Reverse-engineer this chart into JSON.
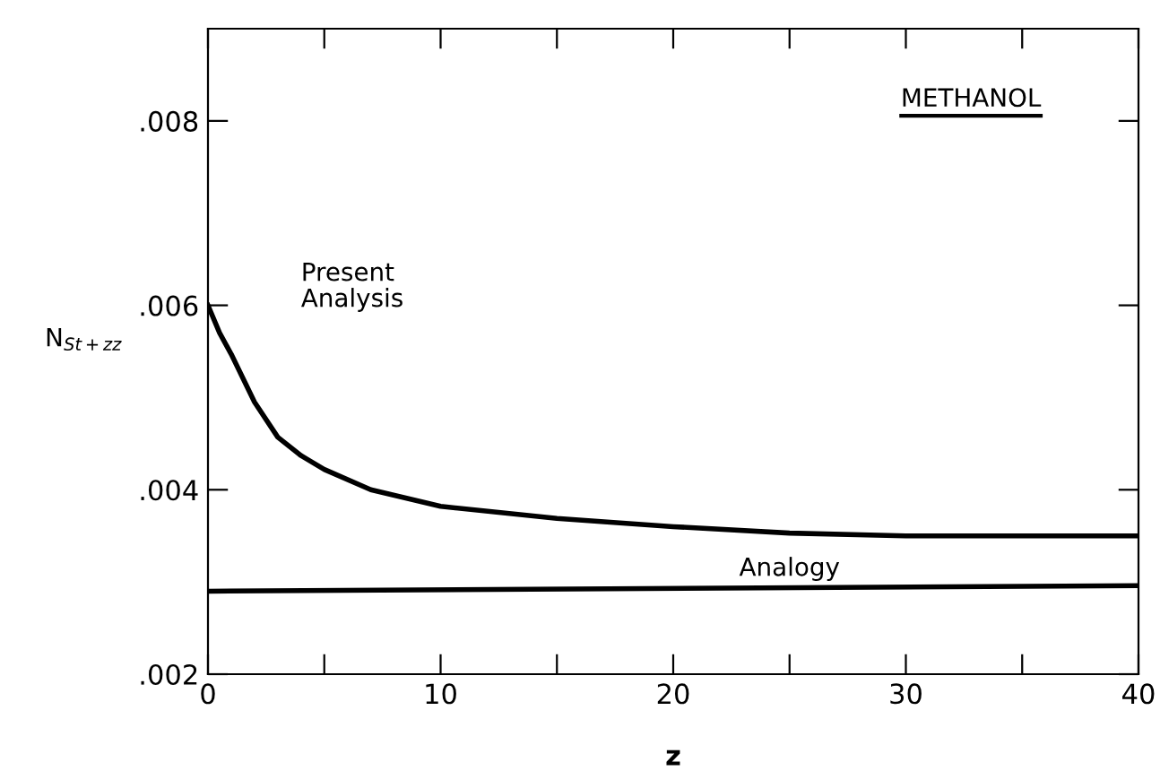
{
  "chart_data": {
    "type": "line",
    "xlabel": "z",
    "ylabel": "N$_{St+zz}$",
    "xlim": [
      0,
      40
    ],
    "ylim": [
      0.002,
      0.009
    ],
    "xticks": [
      0,
      {
        "value": 5,
        "label": null
      },
      10,
      {
        "value": 15,
        "label": null
      },
      20,
      {
        "value": 25,
        "label": null
      },
      30,
      {
        "value": 35,
        "label": null
      },
      40
    ],
    "yticks": [
      {
        "value": 0.002,
        "label": ".002"
      },
      {
        "value": 0.004,
        "label": ".004"
      },
      {
        "value": 0.006,
        "label": ".006"
      },
      {
        "value": 0.008,
        "label": ".008"
      }
    ],
    "series": [
      {
        "color": "#000000",
        "x": [
          0,
          0.5,
          1,
          2,
          3,
          4,
          5,
          7,
          10,
          15,
          20,
          25,
          30,
          35,
          40
        ],
        "values": [
          0.006,
          0.0057,
          0.00547,
          0.00495,
          0.00457,
          0.00437,
          0.00422,
          0.004,
          0.00382,
          0.00369,
          0.0036,
          0.00353,
          0.0035,
          0.0035,
          0.0035
        ]
      },
      {
        "color": "#000000",
        "x": [
          0,
          40
        ],
        "values": [
          0.0029,
          0.00296
        ]
      }
    ],
    "annotations": [
      "Present\nAnalysis",
      {
        "text": "Analogy",
        "x": 25,
        "y": 0.00293
      },
      "METHANOL"
    ],
    "grid": false,
    "marker": "none",
    "line_style": "solid"
  }
}
